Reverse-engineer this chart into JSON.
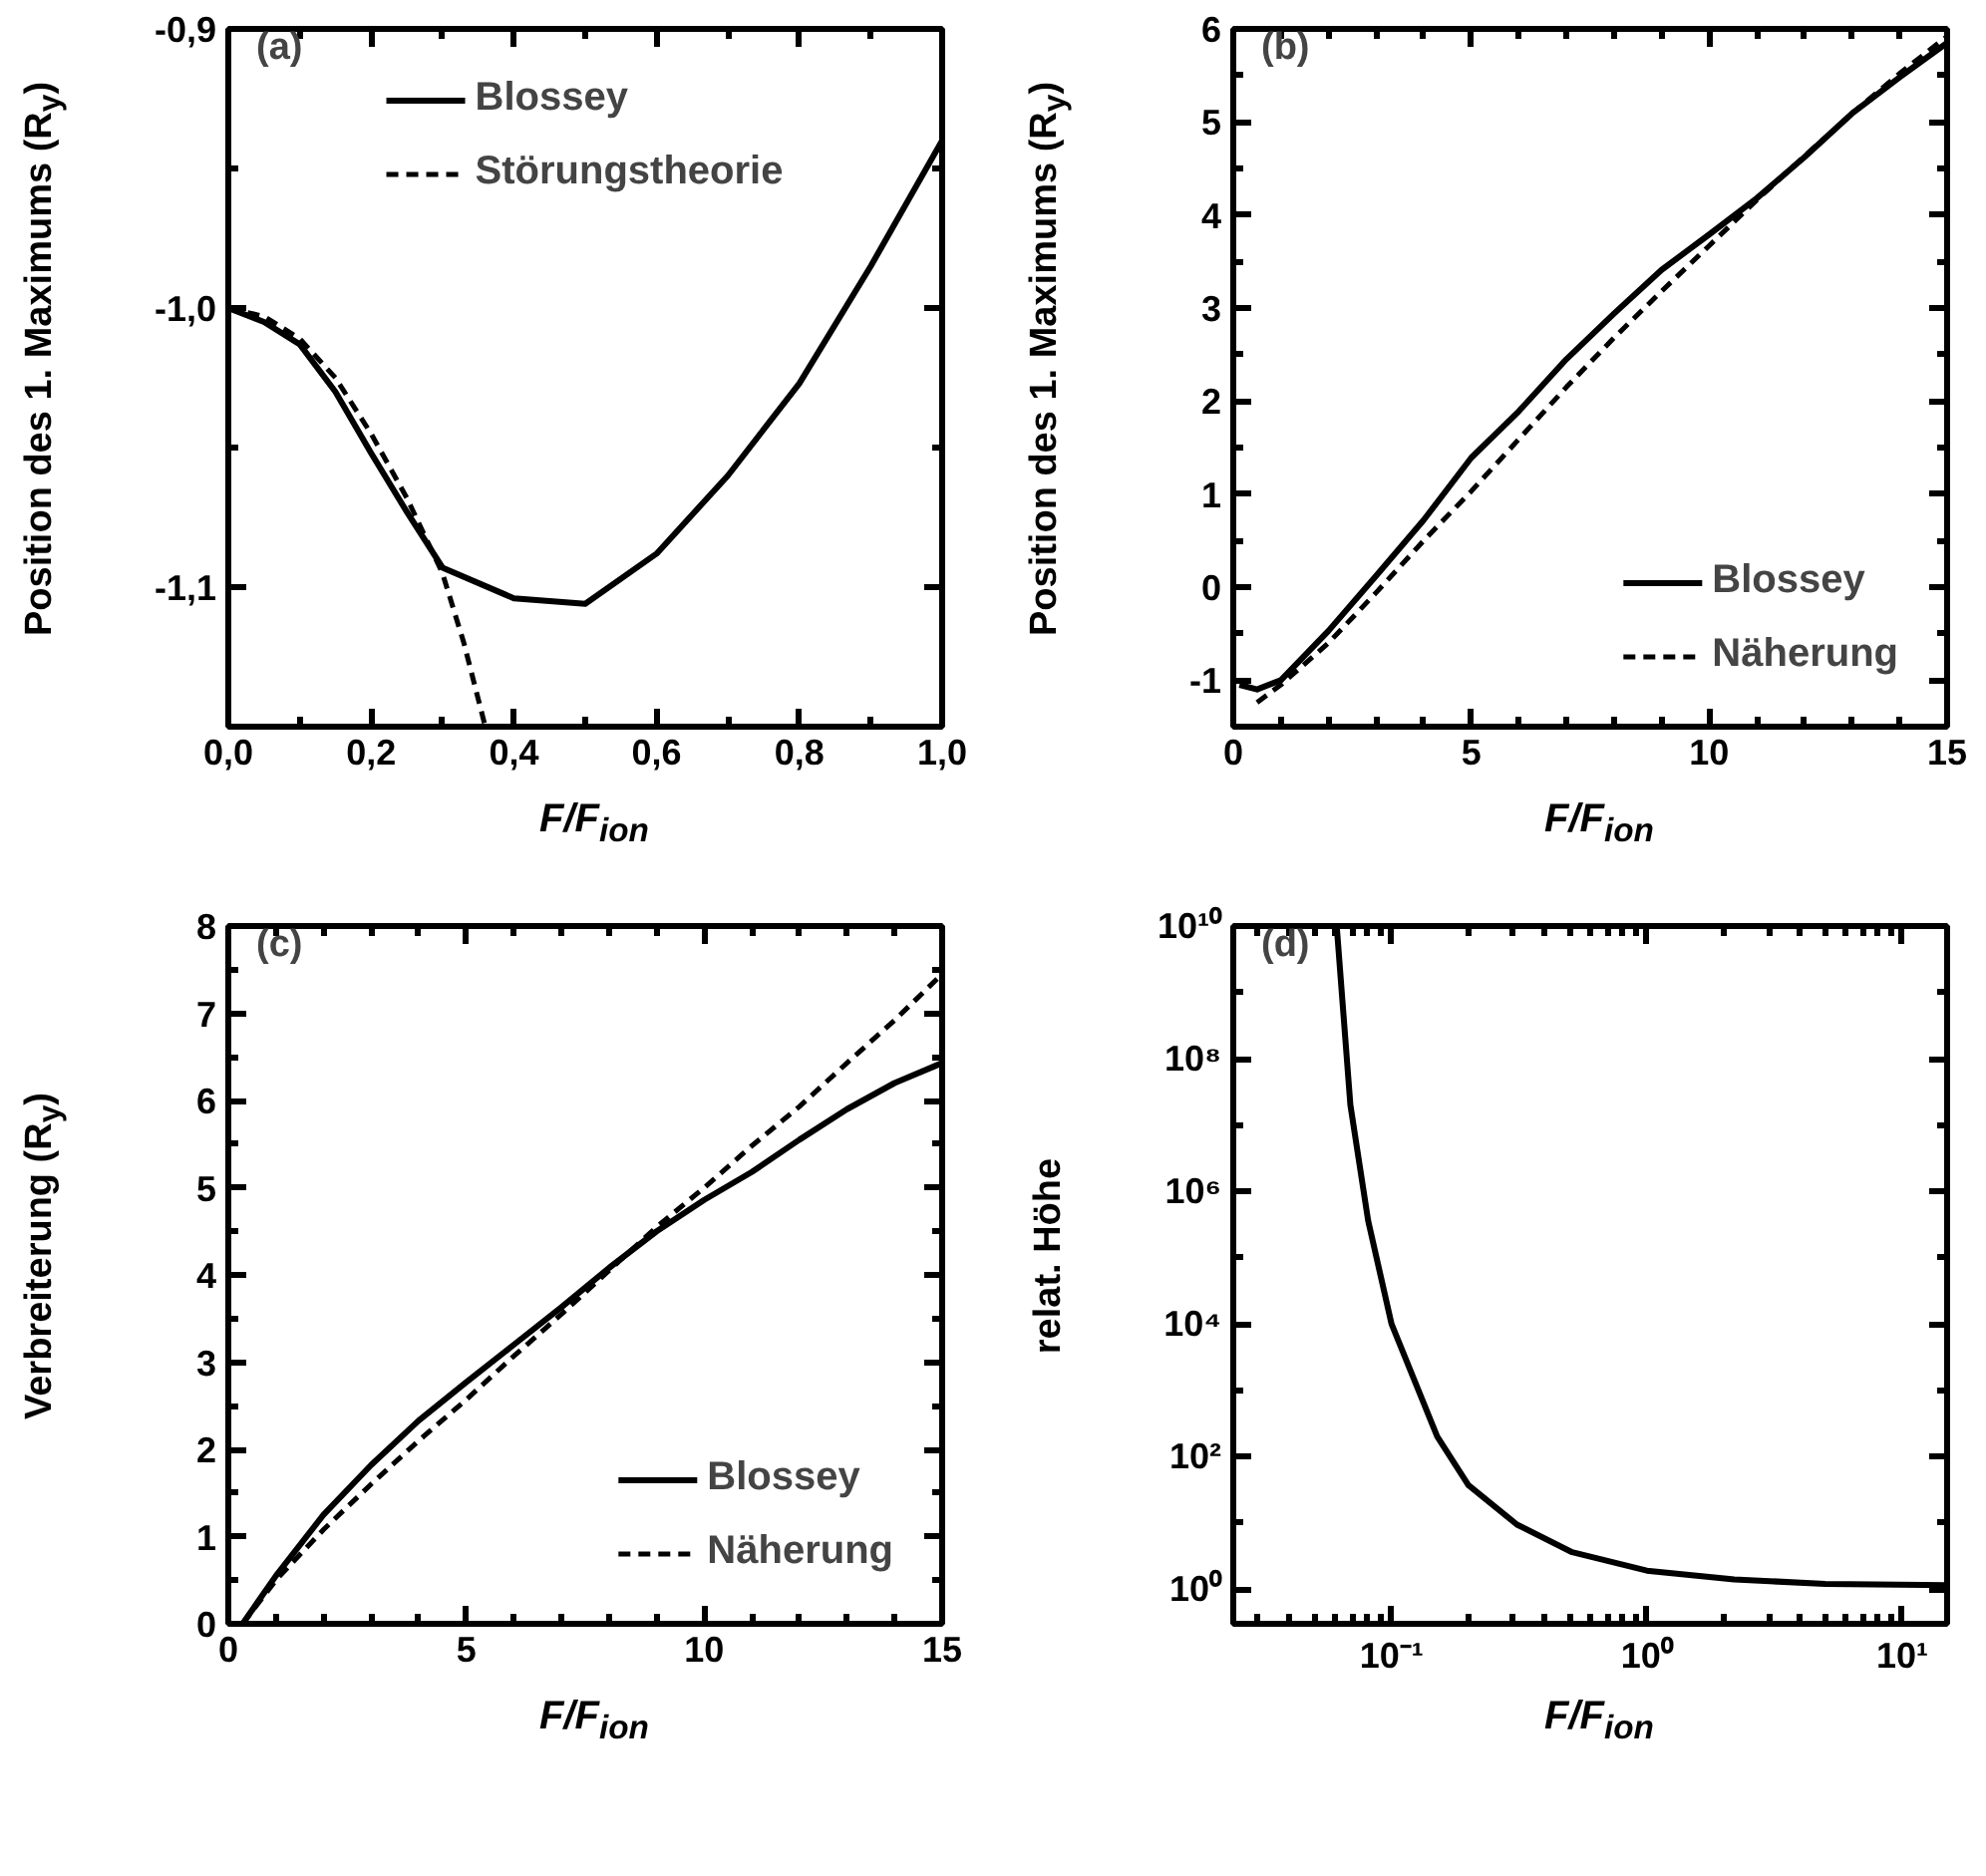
{
  "chart_data": [
    {
      "type": "line",
      "xlabel": "F/F$_{ion}$",
      "ylabel": "Position des 1. Maximums  (R$_{y}$)",
      "annotations": [
        "(a)"
      ],
      "legend": "top",
      "xlim": [
        0,
        1
      ],
      "ylim": [
        -1.15,
        -0.9
      ],
      "xticks": [
        {
          "value": 0,
          "label": "0,0"
        },
        {
          "value": 0.1,
          "label": null
        },
        {
          "value": 0.2,
          "label": "0,2"
        },
        {
          "value": 0.3,
          "label": null
        },
        {
          "value": 0.4,
          "label": "0,4"
        },
        {
          "value": 0.5,
          "label": null
        },
        {
          "value": 0.6,
          "label": "0,6"
        },
        {
          "value": 0.7,
          "label": null
        },
        {
          "value": 0.8,
          "label": "0,8"
        },
        {
          "value": 0.9,
          "label": null
        },
        {
          "value": 1,
          "label": "1,0"
        }
      ],
      "yticks": [
        {
          "value": -0.9,
          "label": "-0,9"
        },
        {
          "value": -0.95,
          "label": null
        },
        {
          "value": -1.0,
          "label": "-1,0"
        },
        {
          "value": -1.05,
          "label": null
        },
        {
          "value": -1.1,
          "label": "-1,1"
        }
      ],
      "series": [
        {
          "name": "Blossey",
          "color": "#000000",
          "line_style": "solid",
          "x": [
            0,
            0.05,
            0.1,
            0.15,
            0.2,
            0.25,
            0.3,
            0.4,
            0.5,
            0.6,
            0.7,
            0.8,
            0.9,
            1.0
          ],
          "values": [
            -1.0,
            -1.005,
            -1.013,
            -1.03,
            -1.052,
            -1.073,
            -1.093,
            -1.104,
            -1.106,
            -1.088,
            -1.06,
            -1.027,
            -0.985,
            -0.94
          ]
        },
        {
          "name": "Störungstheorie",
          "color": "#000000",
          "line_style": "dashed",
          "x": [
            0,
            0.05,
            0.1,
            0.15,
            0.2,
            0.25,
            0.3,
            0.33,
            0.36
          ],
          "values": [
            -1.0,
            -1.003,
            -1.011,
            -1.025,
            -1.045,
            -1.068,
            -1.095,
            -1.12,
            -1.15
          ]
        }
      ]
    },
    {
      "type": "line",
      "xlabel": "F/F$_{ion}$",
      "ylabel": "Position des 1. Maximums  (R$_{y}$)",
      "annotations": [
        "(b)"
      ],
      "legend": "bottom right",
      "xlim": [
        0,
        15
      ],
      "ylim": [
        -1.5,
        6
      ],
      "xticks": [
        0,
        {
          "value": 1,
          "label": null
        },
        {
          "value": 2,
          "label": null
        },
        {
          "value": 3,
          "label": null
        },
        {
          "value": 4,
          "label": null
        },
        5,
        {
          "value": 6,
          "label": null
        },
        {
          "value": 7,
          "label": null
        },
        {
          "value": 8,
          "label": null
        },
        {
          "value": 9,
          "label": null
        },
        10,
        {
          "value": 11,
          "label": null
        },
        {
          "value": 12,
          "label": null
        },
        {
          "value": 13,
          "label": null
        },
        {
          "value": 14,
          "label": null
        },
        15
      ],
      "yticks": [
        -1,
        {
          "value": -0.5,
          "label": null
        },
        0,
        {
          "value": 0.5,
          "label": null
        },
        1,
        {
          "value": 1.5,
          "label": null
        },
        2,
        {
          "value": 2.5,
          "label": null
        },
        3,
        {
          "value": 3.5,
          "label": null
        },
        4,
        {
          "value": 4.5,
          "label": null
        },
        5,
        {
          "value": 5.5,
          "label": null
        },
        6
      ],
      "series": [
        {
          "name": "Blossey",
          "color": "#000000",
          "line_style": "solid",
          "x": [
            0.13,
            0.5,
            1,
            2,
            3,
            4,
            5,
            6,
            7,
            8,
            9,
            10,
            11,
            12,
            13,
            14,
            15
          ],
          "values": [
            -1.05,
            -1.1,
            -1.0,
            -0.47,
            0.12,
            0.72,
            1.39,
            1.89,
            2.45,
            2.94,
            3.41,
            3.79,
            4.18,
            4.62,
            5.09,
            5.48,
            5.85
          ]
        },
        {
          "name": "Näherung",
          "color": "#000000",
          "line_style": "dashed",
          "x": [
            0.5,
            1,
            2,
            3,
            4,
            5,
            6,
            7,
            8,
            9,
            10,
            11,
            12,
            13,
            14,
            15
          ],
          "values": [
            -1.24,
            -1.05,
            -0.6,
            -0.06,
            0.5,
            1.03,
            1.59,
            2.15,
            2.68,
            3.18,
            3.67,
            4.16,
            4.63,
            5.09,
            5.52,
            5.92
          ]
        }
      ]
    },
    {
      "type": "line",
      "xlabel": "F/F$_{ion}$",
      "ylabel": "Verbreiterung (R$_{y}$)",
      "annotations": [
        "(c)"
      ],
      "legend": "bottom right",
      "xlim": [
        0,
        15
      ],
      "ylim": [
        0,
        8
      ],
      "xticks": [
        0,
        {
          "value": 1,
          "label": null
        },
        {
          "value": 2,
          "label": null
        },
        {
          "value": 3,
          "label": null
        },
        {
          "value": 4,
          "label": null
        },
        5,
        {
          "value": 6,
          "label": null
        },
        {
          "value": 7,
          "label": null
        },
        {
          "value": 8,
          "label": null
        },
        {
          "value": 9,
          "label": null
        },
        10,
        {
          "value": 11,
          "label": null
        },
        {
          "value": 12,
          "label": null
        },
        {
          "value": 13,
          "label": null
        },
        {
          "value": 14,
          "label": null
        },
        15
      ],
      "yticks": [
        0,
        {
          "value": 0.5,
          "label": null
        },
        1,
        {
          "value": 1.5,
          "label": null
        },
        2,
        {
          "value": 2.5,
          "label": null
        },
        3,
        {
          "value": 3.5,
          "label": null
        },
        4,
        {
          "value": 4.5,
          "label": null
        },
        5,
        {
          "value": 5.5,
          "label": null
        },
        6,
        {
          "value": 6.5,
          "label": null
        },
        7,
        {
          "value": 7.5,
          "label": null
        },
        8
      ],
      "series": [
        {
          "name": "Blossey",
          "color": "#000000",
          "line_style": "solid",
          "x": [
            0.3,
            1,
            2,
            3,
            4,
            5,
            6,
            7,
            8,
            9,
            10,
            11,
            12,
            13,
            14,
            15
          ],
          "values": [
            0,
            0.55,
            1.25,
            1.82,
            2.33,
            2.77,
            3.2,
            3.63,
            4.08,
            4.5,
            4.86,
            5.18,
            5.55,
            5.9,
            6.2,
            6.43
          ]
        },
        {
          "name": "Näherung",
          "color": "#000000",
          "line_style": "dashed",
          "x": [
            0.3,
            1,
            2,
            3,
            4,
            5,
            6,
            7,
            8,
            9,
            10,
            11,
            12,
            13,
            14,
            15
          ],
          "values": [
            0,
            0.5,
            1.08,
            1.6,
            2.1,
            2.57,
            3.07,
            3.55,
            4.05,
            4.55,
            5.0,
            5.48,
            5.93,
            6.43,
            6.92,
            7.45
          ]
        }
      ]
    },
    {
      "type": "line",
      "xlabel": "F/F$_{ion}$",
      "ylabel": "relat. Höhe",
      "annotations": [
        "(d)"
      ],
      "log": "xy",
      "xlim": [
        0.024,
        15
      ],
      "ylim": [
        0.3,
        10000000000
      ],
      "xticks": [
        {
          "value": 0.03,
          "label": null
        },
        {
          "value": 0.04,
          "label": null
        },
        {
          "value": 0.05,
          "label": null
        },
        {
          "value": 0.06,
          "label": null
        },
        {
          "value": 0.07,
          "label": null
        },
        {
          "value": 0.08,
          "label": null
        },
        {
          "value": 0.09,
          "label": null
        },
        {
          "value": 0.1,
          "label": "10⁻¹"
        },
        {
          "value": 0.2,
          "label": null
        },
        {
          "value": 0.3,
          "label": null
        },
        {
          "value": 0.4,
          "label": null
        },
        {
          "value": 0.5,
          "label": null
        },
        {
          "value": 0.6,
          "label": null
        },
        {
          "value": 0.7,
          "label": null
        },
        {
          "value": 0.8,
          "label": null
        },
        {
          "value": 0.9,
          "label": null
        },
        {
          "value": 1,
          "label": "10⁰"
        },
        {
          "value": 2,
          "label": null
        },
        {
          "value": 3,
          "label": null
        },
        {
          "value": 4,
          "label": null
        },
        {
          "value": 5,
          "label": null
        },
        {
          "value": 6,
          "label": null
        },
        {
          "value": 7,
          "label": null
        },
        {
          "value": 8,
          "label": null
        },
        {
          "value": 9,
          "label": null
        },
        {
          "value": 10,
          "label": "10¹"
        }
      ],
      "yticks": [
        {
          "value": 1,
          "label": "10⁰"
        },
        {
          "value": 10,
          "label": null
        },
        {
          "value": 100,
          "label": "10²"
        },
        {
          "value": 1000,
          "label": null
        },
        {
          "value": 10000,
          "label": "10⁴"
        },
        {
          "value": 100000,
          "label": null
        },
        {
          "value": 1000000,
          "label": "10⁶"
        },
        {
          "value": 10000000,
          "label": null
        },
        {
          "value": 100000000,
          "label": "10⁸"
        },
        {
          "value": 1000000000,
          "label": null
        },
        {
          "value": 10000000000,
          "label": "10¹⁰"
        }
      ],
      "series": [
        {
          "color": "#000000",
          "line_style": "solid",
          "x": [
            0.061,
            0.069,
            0.081,
            0.1,
            0.151,
            0.2,
            0.31,
            0.51,
            1,
            2.2,
            5,
            15
          ],
          "values": [
            10000000000,
            20000000,
            360000,
            10000,
            200,
            37,
            9.4,
            3.6,
            1.9,
            1.4,
            1.2,
            1.15
          ]
        }
      ]
    }
  ]
}
